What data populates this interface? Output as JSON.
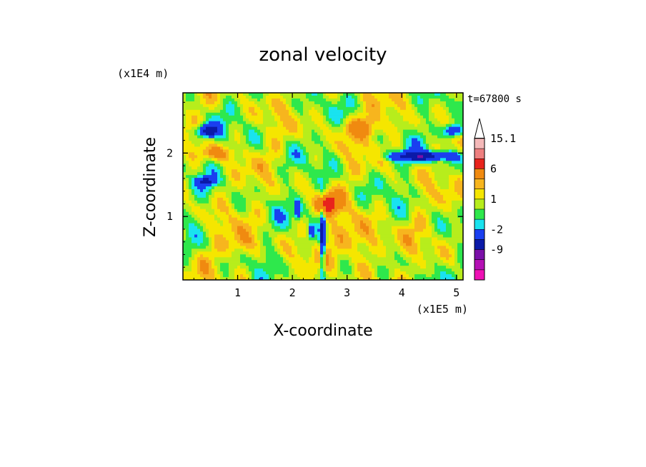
{
  "chart_data": {
    "type": "heatmap",
    "title": "zonal velocity",
    "xlabel": "X-coordinate",
    "ylabel": "Z-coordinate",
    "x_unit": "(x1E5 m)",
    "y_unit": "(x1E4 m)",
    "time_label": "t=67800 s",
    "xlim": [
      0.0,
      5.12
    ],
    "ylim": [
      0.0,
      2.95
    ],
    "x_ticks": [
      "1",
      "2",
      "3",
      "4",
      "5"
    ],
    "y_ticks": [
      "1",
      "2"
    ],
    "grid": false,
    "colorbar": {
      "position": "right",
      "extend_top": true,
      "labels": [
        "15.1",
        "6",
        "1",
        "-2",
        "-9"
      ],
      "levels": [
        {
          "lower": 12,
          "upper": 15.1,
          "color": "#f4b8b8"
        },
        {
          "lower": 9,
          "upper": 12,
          "color": "#ee7f7f"
        },
        {
          "lower": 6,
          "upper": 9,
          "color": "#e8231c"
        },
        {
          "lower": 3,
          "upper": 6,
          "color": "#f08a10"
        },
        {
          "lower": 2,
          "upper": 3,
          "color": "#f7b51e"
        },
        {
          "lower": 1,
          "upper": 2,
          "color": "#f5e600"
        },
        {
          "lower": 0,
          "upper": 1,
          "color": "#b7ed1c"
        },
        {
          "lower": -1,
          "upper": 0,
          "color": "#2ee84c"
        },
        {
          "lower": -2,
          "upper": -1,
          "color": "#19e3ef"
        },
        {
          "lower": -5,
          "upper": -2,
          "color": "#1a3ff0"
        },
        {
          "lower": -9,
          "upper": -5,
          "color": "#0b1aa8"
        },
        {
          "lower": -12,
          "upper": -9,
          "color": "#7a10a8"
        },
        {
          "lower": -15,
          "upper": -12,
          "color": "#b410b4"
        },
        {
          "lower": -18,
          "upper": -15,
          "color": "#ee10b4"
        }
      ]
    }
  }
}
